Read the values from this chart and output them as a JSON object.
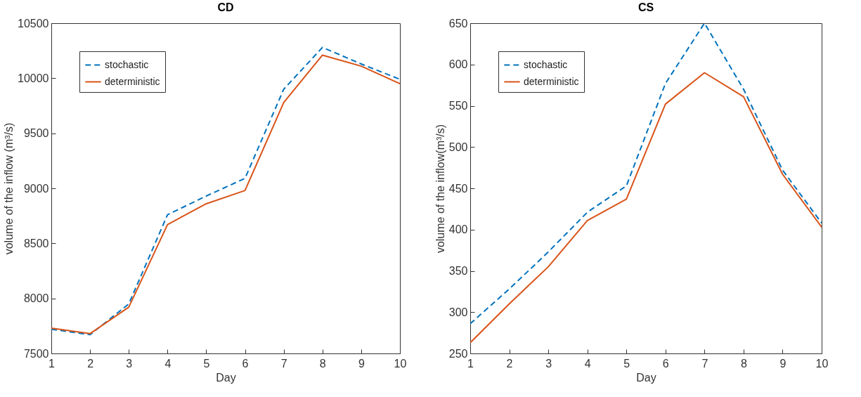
{
  "chart_data": [
    {
      "type": "line",
      "title": "CD",
      "xlabel": "Day",
      "ylabel": "volume of the inflow (m³/s)",
      "x": [
        1,
        2,
        3,
        4,
        5,
        6,
        7,
        8,
        9,
        10
      ],
      "xlim": [
        1,
        10
      ],
      "xticks": [
        1,
        2,
        3,
        4,
        5,
        6,
        7,
        8,
        9,
        10
      ],
      "ylim": [
        7500,
        10500
      ],
      "yticks": [
        7500,
        8000,
        8500,
        9000,
        9500,
        10000,
        10500
      ],
      "grid": false,
      "legend": "top left",
      "series": [
        {
          "name": "stochastic",
          "color": "#0072bd",
          "line_style": "dashed",
          "values": [
            7720,
            7670,
            7950,
            8760,
            8930,
            9090,
            9900,
            10280,
            10130,
            9990
          ]
        },
        {
          "name": "deterministic",
          "color": "#d95319",
          "line_style": "solid",
          "values": [
            7730,
            7680,
            7920,
            8670,
            8860,
            8980,
            9780,
            10210,
            10110,
            9950
          ]
        }
      ]
    },
    {
      "type": "line",
      "title": "CS",
      "xlabel": "Day",
      "ylabel": "volume of the inflow(m³/s)",
      "x": [
        1,
        2,
        3,
        4,
        5,
        6,
        7,
        8,
        9,
        10
      ],
      "xlim": [
        1,
        10
      ],
      "xticks": [
        1,
        2,
        3,
        4,
        5,
        6,
        7,
        8,
        9,
        10
      ],
      "ylim": [
        250,
        650
      ],
      "yticks": [
        250,
        300,
        350,
        400,
        450,
        500,
        550,
        600,
        650
      ],
      "grid": false,
      "legend": "top left",
      "series": [
        {
          "name": "stochastic",
          "color": "#0072bd",
          "line_style": "dashed",
          "values": [
            286,
            328,
            373,
            421,
            453,
            577,
            650,
            570,
            472,
            408
          ]
        },
        {
          "name": "deterministic",
          "color": "#d95319",
          "line_style": "solid",
          "values": [
            263,
            310,
            355,
            411,
            437,
            552,
            590,
            561,
            467,
            403
          ]
        }
      ]
    }
  ]
}
